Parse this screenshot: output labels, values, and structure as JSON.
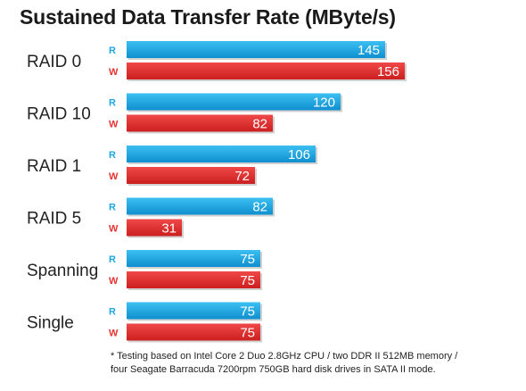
{
  "chart_data": {
    "type": "bar",
    "orientation": "horizontal",
    "title": "Sustained Data Transfer Rate (MByte/s)",
    "categories": [
      "RAID 0",
      "RAID 10",
      "RAID 1",
      "RAID 5",
      "Spanning",
      "Single"
    ],
    "series": [
      {
        "name": "R",
        "color": "#1ea6df",
        "values": [
          145,
          120,
          106,
          82,
          75,
          75
        ]
      },
      {
        "name": "W",
        "color": "#e63232",
        "values": [
          156,
          82,
          72,
          31,
          75,
          75
        ]
      }
    ],
    "xlim": [
      0,
      160
    ],
    "grid": false,
    "data_labels": true
  },
  "footnote": {
    "line1": "* Testing based on Intel Core 2 Duo 2.8GHz CPU / two DDR II 512MB memory /",
    "line2": "four Seagate Barracuda 7200rpm 750GB hard disk drives in SATA II mode."
  }
}
